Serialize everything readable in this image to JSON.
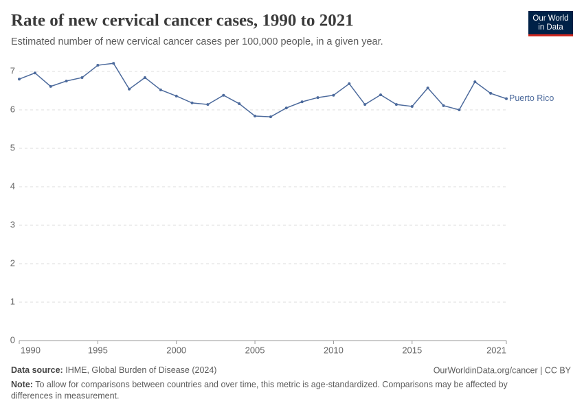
{
  "chart_data": {
    "type": "line",
    "title": "Rate of new cervical cancer cases, 1990 to 2021",
    "subtitle": "Estimated number of new cervical cancer cases per 100,000 people, in a given year.",
    "logo": [
      "Our World",
      "in Data"
    ],
    "source_label": "Data source:",
    "source": "IHME, Global Burden of Disease (2024)",
    "url": "OurWorldinData.org/cancer | CC BY",
    "note_label": "Note:",
    "note": [
      "To allow for comparisons between countries and over time, this metric is age-standardized. Comparisons may be affected by",
      "differences in measurement."
    ],
    "x": [
      1990,
      1991,
      1992,
      1993,
      1994,
      1995,
      1996,
      1997,
      1998,
      1999,
      2000,
      2001,
      2002,
      2003,
      2004,
      2005,
      2006,
      2007,
      2008,
      2009,
      2010,
      2011,
      2012,
      2013,
      2014,
      2015,
      2016,
      2017,
      2018,
      2019,
      2020,
      2021
    ],
    "series": [
      {
        "name": "Puerto Rico",
        "color": "#4c6a9c",
        "values": [
          6.8,
          6.96,
          6.61,
          6.75,
          6.84,
          7.16,
          7.21,
          6.54,
          6.84,
          6.52,
          6.36,
          6.18,
          6.14,
          6.38,
          6.16,
          5.84,
          5.82,
          6.05,
          6.21,
          6.32,
          6.38,
          6.68,
          6.14,
          6.39,
          6.14,
          6.09,
          6.57,
          6.11,
          6.0,
          6.73,
          6.43,
          6.29
        ]
      }
    ],
    "xlim": [
      1990,
      2021
    ],
    "xticks": [
      1990,
      1995,
      2000,
      2005,
      2010,
      2015,
      2021
    ],
    "ylim": [
      0,
      7
    ],
    "yticks": [
      0,
      1,
      2,
      3,
      4,
      5,
      6,
      7
    ],
    "grid": true
  }
}
